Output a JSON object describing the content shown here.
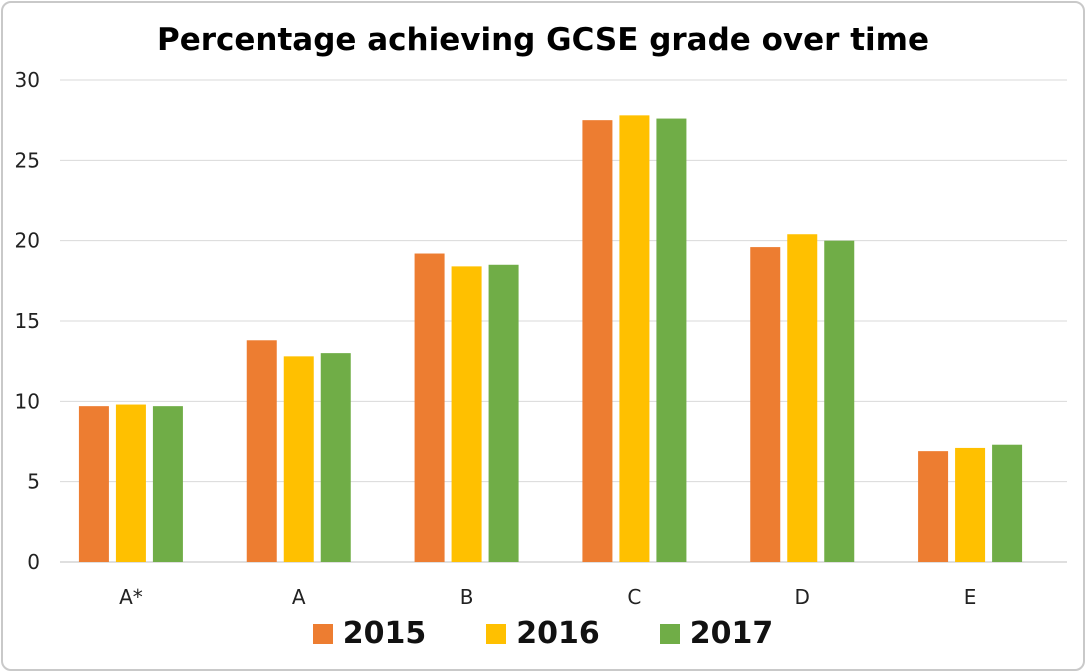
{
  "chart_data": {
    "type": "bar",
    "title": "Percentage achieving GCSE grade over time",
    "xlabel": "",
    "ylabel": "",
    "ylim": [
      0,
      30
    ],
    "yticks": [
      0,
      5,
      10,
      15,
      20,
      25,
      30
    ],
    "grid": true,
    "legend_position": "bottom",
    "categories": [
      "A*",
      "A",
      "B",
      "C",
      "D",
      "E"
    ],
    "series": [
      {
        "name": "2015",
        "color": "#ED7D31",
        "values": [
          9.7,
          13.8,
          19.2,
          27.5,
          19.6,
          6.9
        ]
      },
      {
        "name": "2016",
        "color": "#FFC000",
        "values": [
          9.8,
          12.8,
          18.4,
          27.8,
          20.4,
          7.1
        ]
      },
      {
        "name": "2017",
        "color": "#70AD47",
        "values": [
          9.7,
          13.0,
          18.5,
          27.6,
          20.0,
          7.3
        ]
      }
    ]
  }
}
